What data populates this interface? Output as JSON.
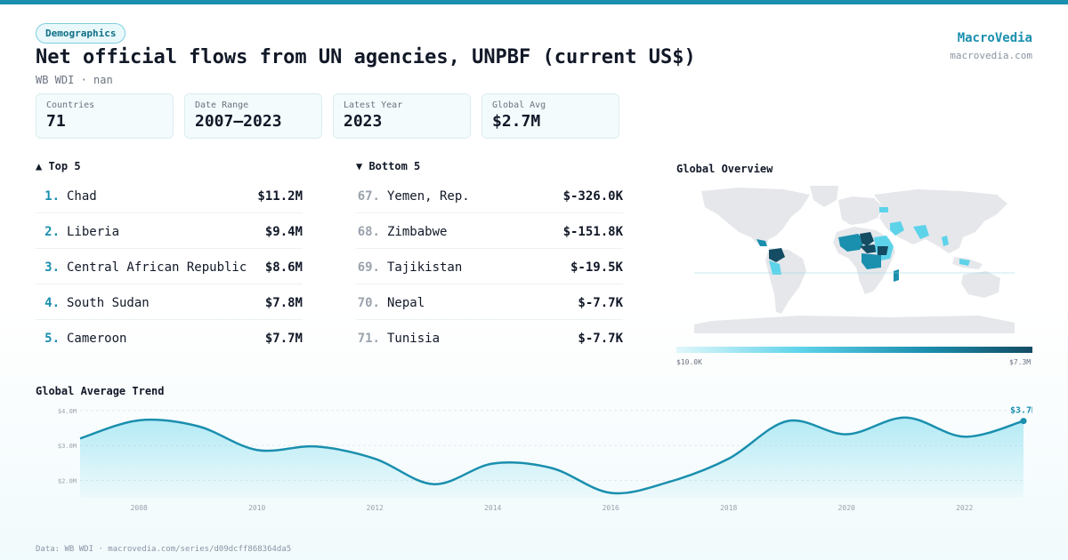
{
  "header": {
    "badge": "Demographics",
    "title": "Net official flows from UN agencies, UNPBF (current US$)",
    "subtitle": "WB WDI · nan",
    "brand_name": "MacroVedia",
    "brand_url": "macrovedia.com"
  },
  "stats": [
    {
      "label": "Countries",
      "value": "71"
    },
    {
      "label": "Date Range",
      "value": "2007–2023"
    },
    {
      "label": "Latest Year",
      "value": "2023"
    },
    {
      "label": "Global Avg",
      "value": "$2.7M"
    }
  ],
  "top5": {
    "heading": "▲ Top 5",
    "items": [
      {
        "rank": "1.",
        "name": "Chad",
        "value": "$11.2M"
      },
      {
        "rank": "2.",
        "name": "Liberia",
        "value": "$9.4M"
      },
      {
        "rank": "3.",
        "name": "Central African Republic",
        "value": "$8.6M"
      },
      {
        "rank": "4.",
        "name": "South Sudan",
        "value": "$7.8M"
      },
      {
        "rank": "5.",
        "name": "Cameroon",
        "value": "$7.7M"
      }
    ]
  },
  "bottom5": {
    "heading": "▼ Bottom 5",
    "items": [
      {
        "rank": "67.",
        "name": "Yemen, Rep.",
        "value": "$-326.0K"
      },
      {
        "rank": "68.",
        "name": "Zimbabwe",
        "value": "$-151.8K"
      },
      {
        "rank": "69.",
        "name": "Tajikistan",
        "value": "$-19.5K"
      },
      {
        "rank": "70.",
        "name": "Nepal",
        "value": "$-7.7K"
      },
      {
        "rank": "71.",
        "name": "Tunisia",
        "value": "$-7.7K"
      }
    ]
  },
  "map": {
    "title": "Global Overview",
    "legend_min": "$10.0K",
    "legend_max": "$7.3M"
  },
  "trend": {
    "title": "Global Average Trend",
    "last_label": "$3.7M"
  },
  "footer": "Data: WB WDI · macrovedia.com/series/d09dcff868364da5",
  "colors": {
    "accent": "#1a8fae",
    "line": "#1a8fae",
    "map_land": "#e5e7eb",
    "map_dark": "#134c63",
    "map_light": "#5dd3ea"
  },
  "chart_data": {
    "type": "area",
    "title": "Global Average Trend",
    "x": [
      2007,
      2008,
      2009,
      2010,
      2011,
      2012,
      2013,
      2014,
      2015,
      2016,
      2017,
      2018,
      2019,
      2020,
      2021,
      2022,
      2023
    ],
    "values": [
      3.2,
      3.72,
      3.55,
      2.87,
      2.97,
      2.62,
      1.89,
      2.48,
      2.35,
      1.64,
      1.96,
      2.62,
      3.7,
      3.32,
      3.8,
      3.25,
      3.7
    ],
    "yticks": [
      2.0,
      3.0,
      4.0
    ],
    "ytick_labels": [
      "$2.0M",
      "$3.0M",
      "$4.0M"
    ],
    "xticks": [
      2008,
      2010,
      2012,
      2014,
      2016,
      2018,
      2020,
      2022
    ],
    "ylim": [
      1.5,
      4.2
    ],
    "unit": "US$ millions",
    "last_point_label": "$3.7M"
  }
}
